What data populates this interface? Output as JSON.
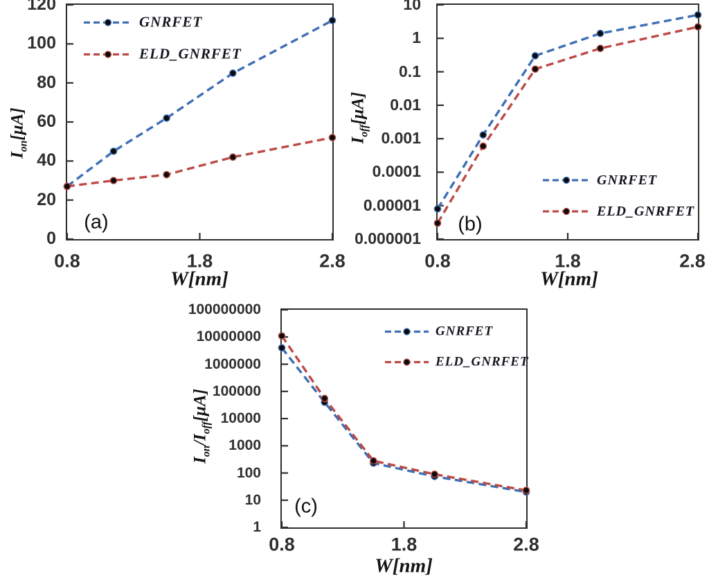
{
  "figure": {
    "background": "#ffffff",
    "axis_color": "#2e2e2e",
    "tick_label_color": "#2f2f2f",
    "text_color": "#141414",
    "marker_color": "#0c0c0c",
    "series_colors": {
      "GNRFET": "#3e6eb5",
      "ELD_GNRFET": "#bc4a45"
    }
  },
  "chart_data": [
    {
      "id": "a",
      "type": "line",
      "panel_label": "(a)",
      "xlabel": "W[nm]",
      "ylabel": {
        "base": "I",
        "sub": "on",
        "unit": "[μA]"
      },
      "yscale": "linear",
      "ylim": [
        0,
        120
      ],
      "yticks": [
        0,
        20,
        40,
        60,
        80,
        100,
        120
      ],
      "ytick_labels": [
        "0",
        "20",
        "40",
        "60",
        "80",
        "100",
        "120"
      ],
      "xlim": [
        0.8,
        2.8
      ],
      "xticks": [
        0.8,
        1.8,
        2.8
      ],
      "xtick_labels": [
        "0.8",
        "1.8",
        "2.8"
      ],
      "x": [
        0.8,
        1.15,
        1.55,
        2.05,
        2.8
      ],
      "series": [
        {
          "name": "GNRFET",
          "color_key": "GNRFET",
          "values": [
            27,
            45,
            62,
            85,
            112
          ]
        },
        {
          "name": "ELD_GNRFET",
          "color_key": "ELD_GNRFET",
          "values": [
            27,
            30,
            33,
            42,
            52
          ]
        }
      ],
      "legend": {
        "position": "top-left-inside"
      },
      "grid": false
    },
    {
      "id": "b",
      "type": "line",
      "panel_label": "(b)",
      "xlabel": "W[nm]",
      "ylabel": {
        "base": "I",
        "sub": "off",
        "unit": "[μA]"
      },
      "yscale": "log",
      "ylim": [
        1e-06,
        10
      ],
      "yticks": [
        10,
        1,
        0.1,
        0.01,
        0.001,
        0.0001,
        1e-05,
        1e-06
      ],
      "ytick_labels": [
        "10",
        "1",
        "0.1",
        "0.01",
        "0.001",
        "0.0001",
        "0.00001",
        "0.000001"
      ],
      "xlim": [
        0.8,
        2.8
      ],
      "xticks": [
        0.8,
        1.8,
        2.8
      ],
      "xtick_labels": [
        "0.8",
        "1.8",
        "2.8"
      ],
      "x": [
        0.8,
        1.15,
        1.55,
        2.05,
        2.8
      ],
      "series": [
        {
          "name": "GNRFET",
          "color_key": "GNRFET",
          "values": [
            8e-06,
            0.0013,
            0.3,
            1.4,
            5
          ]
        },
        {
          "name": "ELD_GNRFET",
          "color_key": "ELD_GNRFET",
          "values": [
            3e-06,
            0.0006,
            0.12,
            0.5,
            2.2
          ]
        }
      ],
      "legend": {
        "position": "right-middle-inside"
      },
      "grid": false
    },
    {
      "id": "c",
      "type": "line",
      "panel_label": "(c)",
      "xlabel": "W[nm]",
      "ylabel": {
        "base": "I",
        "sub": "on",
        "base2": "/I",
        "sub2": "off",
        "unit": "[μA]"
      },
      "yscale": "log",
      "ylim": [
        1,
        100000000
      ],
      "yticks": [
        100000000,
        10000000,
        1000000,
        100000,
        10000,
        1000,
        100,
        10,
        1
      ],
      "ytick_labels": [
        "100000000",
        "10000000",
        "1000000",
        "100000",
        "10000",
        "1000",
        "100",
        "10",
        "1"
      ],
      "xlim": [
        0.8,
        2.8
      ],
      "xticks": [
        0.8,
        1.8,
        2.8
      ],
      "xtick_labels": [
        "0.8",
        "1.8",
        "2.8"
      ],
      "x": [
        0.8,
        1.15,
        1.55,
        2.05,
        2.8
      ],
      "series": [
        {
          "name": "GNRFET",
          "color_key": "GNRFET",
          "values": [
            4000000,
            40000,
            230,
            75,
            20
          ]
        },
        {
          "name": "ELD_GNRFET",
          "color_key": "ELD_GNRFET",
          "values": [
            11000000,
            55000,
            280,
            90,
            23
          ]
        }
      ],
      "legend": {
        "position": "top-right-inside"
      },
      "grid": false
    }
  ]
}
